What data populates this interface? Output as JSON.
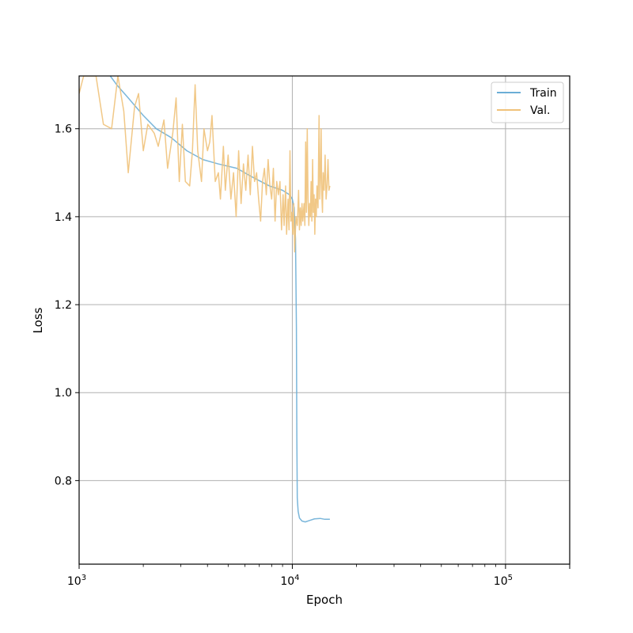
{
  "chart_data": {
    "type": "line",
    "title": "",
    "xlabel": "Epoch",
    "ylabel": "Loss",
    "xscale": "log",
    "xlim": [
      1000,
      200000
    ],
    "ylim": [
      0.61,
      1.72
    ],
    "x_ticks": [
      {
        "value": 1000,
        "base": "10",
        "exp": "3"
      },
      {
        "value": 10000,
        "base": "10",
        "exp": "4"
      },
      {
        "value": 100000,
        "base": "10",
        "exp": "5"
      }
    ],
    "y_ticks": [
      {
        "value": 0.8,
        "label": "0.8"
      },
      {
        "value": 1.0,
        "label": "1.0"
      },
      {
        "value": 1.2,
        "label": "1.2"
      },
      {
        "value": 1.4,
        "label": "1.4"
      },
      {
        "value": 1.6,
        "label": "1.6"
      }
    ],
    "grid": true,
    "legend_position": "top-right",
    "series": [
      {
        "name": "Train",
        "color": "#6baed6",
        "points": [
          [
            1400,
            1.72
          ],
          [
            1500,
            1.7
          ],
          [
            1700,
            1.67
          ],
          [
            2000,
            1.63
          ],
          [
            2300,
            1.6
          ],
          [
            2700,
            1.58
          ],
          [
            3200,
            1.55
          ],
          [
            3800,
            1.53
          ],
          [
            4500,
            1.52
          ],
          [
            5500,
            1.51
          ],
          [
            6500,
            1.49
          ],
          [
            7800,
            1.47
          ],
          [
            9000,
            1.46
          ],
          [
            9700,
            1.45
          ],
          [
            10000,
            1.44
          ],
          [
            10200,
            1.42
          ],
          [
            10350,
            1.35
          ],
          [
            10450,
            1.15
          ],
          [
            10500,
            0.9
          ],
          [
            10550,
            0.76
          ],
          [
            10650,
            0.73
          ],
          [
            10800,
            0.715
          ],
          [
            11100,
            0.708
          ],
          [
            11500,
            0.706
          ],
          [
            12000,
            0.709
          ],
          [
            12700,
            0.713
          ],
          [
            13500,
            0.714
          ],
          [
            14200,
            0.712
          ],
          [
            15000,
            0.712
          ]
        ]
      },
      {
        "name": "Val.",
        "color": "#f0c27a",
        "points": [
          [
            1000,
            1.68
          ],
          [
            1050,
            1.72
          ],
          [
            1200,
            1.72
          ],
          [
            1300,
            1.61
          ],
          [
            1420,
            1.6
          ],
          [
            1520,
            1.72
          ],
          [
            1620,
            1.64
          ],
          [
            1700,
            1.5
          ],
          [
            1820,
            1.65
          ],
          [
            1900,
            1.68
          ],
          [
            2000,
            1.55
          ],
          [
            2100,
            1.61
          ],
          [
            2250,
            1.59
          ],
          [
            2350,
            1.56
          ],
          [
            2500,
            1.62
          ],
          [
            2600,
            1.51
          ],
          [
            2750,
            1.59
          ],
          [
            2850,
            1.67
          ],
          [
            2950,
            1.48
          ],
          [
            3050,
            1.61
          ],
          [
            3150,
            1.48
          ],
          [
            3300,
            1.47
          ],
          [
            3400,
            1.55
          ],
          [
            3500,
            1.7
          ],
          [
            3600,
            1.55
          ],
          [
            3750,
            1.48
          ],
          [
            3850,
            1.6
          ],
          [
            4000,
            1.55
          ],
          [
            4100,
            1.57
          ],
          [
            4200,
            1.63
          ],
          [
            4350,
            1.48
          ],
          [
            4500,
            1.5
          ],
          [
            4600,
            1.44
          ],
          [
            4750,
            1.56
          ],
          [
            4850,
            1.46
          ],
          [
            5000,
            1.54
          ],
          [
            5150,
            1.44
          ],
          [
            5300,
            1.5
          ],
          [
            5450,
            1.4
          ],
          [
            5600,
            1.55
          ],
          [
            5750,
            1.43
          ],
          [
            5900,
            1.52
          ],
          [
            6050,
            1.46
          ],
          [
            6200,
            1.54
          ],
          [
            6350,
            1.45
          ],
          [
            6500,
            1.56
          ],
          [
            6650,
            1.48
          ],
          [
            6800,
            1.5
          ],
          [
            6950,
            1.44
          ],
          [
            7100,
            1.39
          ],
          [
            7250,
            1.48
          ],
          [
            7400,
            1.51
          ],
          [
            7550,
            1.45
          ],
          [
            7700,
            1.53
          ],
          [
            7850,
            1.47
          ],
          [
            8000,
            1.44
          ],
          [
            8150,
            1.51
          ],
          [
            8300,
            1.39
          ],
          [
            8450,
            1.48
          ],
          [
            8600,
            1.45
          ],
          [
            8750,
            1.48
          ],
          [
            8900,
            1.37
          ],
          [
            9050,
            1.45
          ],
          [
            9150,
            1.38
          ],
          [
            9300,
            1.47
          ],
          [
            9400,
            1.36
          ],
          [
            9550,
            1.44
          ],
          [
            9650,
            1.37
          ],
          [
            9750,
            1.55
          ],
          [
            9850,
            1.39
          ],
          [
            9950,
            1.41
          ],
          [
            10050,
            1.36
          ],
          [
            10150,
            1.43
          ],
          [
            10250,
            1.32
          ],
          [
            10400,
            1.4
          ],
          [
            10550,
            1.38
          ],
          [
            10700,
            1.46
          ],
          [
            10800,
            1.37
          ],
          [
            10900,
            1.42
          ],
          [
            11000,
            1.38
          ],
          [
            11100,
            1.43
          ],
          [
            11200,
            1.39
          ],
          [
            11350,
            1.43
          ],
          [
            11450,
            1.38
          ],
          [
            11550,
            1.57
          ],
          [
            11650,
            1.41
          ],
          [
            11750,
            1.6
          ],
          [
            11850,
            1.44
          ],
          [
            11950,
            1.38
          ],
          [
            12050,
            1.43
          ],
          [
            12150,
            1.4
          ],
          [
            12250,
            1.48
          ],
          [
            12350,
            1.39
          ],
          [
            12450,
            1.53
          ],
          [
            12550,
            1.41
          ],
          [
            12650,
            1.45
          ],
          [
            12750,
            1.36
          ],
          [
            12850,
            1.44
          ],
          [
            12950,
            1.4
          ],
          [
            13050,
            1.47
          ],
          [
            13200,
            1.42
          ],
          [
            13350,
            1.63
          ],
          [
            13450,
            1.44
          ],
          [
            13550,
            1.49
          ],
          [
            13650,
            1.6
          ],
          [
            13750,
            1.45
          ],
          [
            13850,
            1.41
          ],
          [
            13950,
            1.5
          ],
          [
            14100,
            1.46
          ],
          [
            14250,
            1.54
          ],
          [
            14400,
            1.44
          ],
          [
            14550,
            1.47
          ],
          [
            14700,
            1.53
          ],
          [
            14850,
            1.46
          ],
          [
            15000,
            1.47
          ]
        ]
      }
    ]
  }
}
